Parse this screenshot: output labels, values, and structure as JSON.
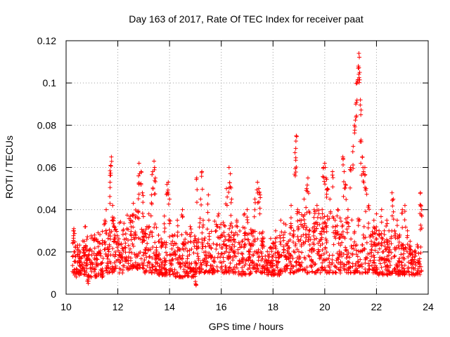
{
  "chart_data": {
    "type": "scatter",
    "title": "Day 163 of 2017, Rate Of TEC Index for receiver paat",
    "xlabel": "GPS time / hours",
    "ylabel": "ROTI / TECUs",
    "xlim": [
      10,
      24
    ],
    "ylim": [
      0,
      0.12
    ],
    "xticks": [
      10,
      12,
      14,
      16,
      18,
      20,
      22,
      24
    ],
    "xtick_labels": [
      "10",
      "12",
      "14",
      "16",
      "18",
      "20",
      "22",
      "24"
    ],
    "yticks": [
      0,
      0.02,
      0.04,
      0.06,
      0.08,
      0.1,
      0.12
    ],
    "ytick_labels": [
      "0",
      "0.02",
      "0.04",
      "0.06",
      "0.08",
      "0.1",
      "0.12"
    ],
    "grid": true,
    "marker": "plus",
    "color": "#ff0000",
    "x_data_range": [
      10.25,
      23.75
    ],
    "points": [
      [
        10.3,
        0.031
      ],
      [
        10.3,
        0.03
      ],
      [
        10.35,
        0.018
      ],
      [
        10.4,
        0.012
      ],
      [
        10.45,
        0.022
      ],
      [
        10.5,
        0.016
      ],
      [
        10.55,
        0.02
      ],
      [
        10.6,
        0.014
      ],
      [
        10.7,
        0.025
      ],
      [
        10.75,
        0.032
      ],
      [
        10.8,
        0.018
      ],
      [
        10.85,
        0.007
      ],
      [
        10.9,
        0.021
      ],
      [
        11.0,
        0.015
      ],
      [
        11.1,
        0.028
      ],
      [
        11.2,
        0.019
      ],
      [
        11.3,
        0.024
      ],
      [
        11.4,
        0.012
      ],
      [
        11.5,
        0.035
      ],
      [
        11.55,
        0.04
      ],
      [
        11.6,
        0.022
      ],
      [
        11.65,
        0.028
      ],
      [
        11.7,
        0.053
      ],
      [
        11.72,
        0.061
      ],
      [
        11.75,
        0.065
      ],
      [
        11.8,
        0.042
      ],
      [
        11.85,
        0.036
      ],
      [
        11.9,
        0.02
      ],
      [
        12.0,
        0.025
      ],
      [
        12.1,
        0.018
      ],
      [
        12.2,
        0.03
      ],
      [
        12.3,
        0.022
      ],
      [
        12.4,
        0.016
      ],
      [
        12.5,
        0.035
      ],
      [
        12.6,
        0.043
      ],
      [
        12.7,
        0.037
      ],
      [
        12.8,
        0.056
      ],
      [
        12.82,
        0.062
      ],
      [
        12.9,
        0.058
      ],
      [
        12.95,
        0.048
      ],
      [
        13.0,
        0.03
      ],
      [
        13.1,
        0.022
      ],
      [
        13.2,
        0.038
      ],
      [
        13.3,
        0.047
      ],
      [
        13.35,
        0.058
      ],
      [
        13.4,
        0.063
      ],
      [
        13.45,
        0.055
      ],
      [
        13.5,
        0.02
      ],
      [
        13.6,
        0.025
      ],
      [
        13.7,
        0.015
      ],
      [
        13.8,
        0.037
      ],
      [
        13.9,
        0.052
      ],
      [
        13.95,
        0.053
      ],
      [
        14.0,
        0.045
      ],
      [
        14.1,
        0.019
      ],
      [
        14.2,
        0.028
      ],
      [
        14.3,
        0.035
      ],
      [
        14.4,
        0.021
      ],
      [
        14.5,
        0.04
      ],
      [
        14.6,
        0.026
      ],
      [
        14.7,
        0.018
      ],
      [
        14.8,
        0.032
      ],
      [
        14.9,
        0.012
      ],
      [
        15.0,
        0.006
      ],
      [
        15.05,
        0.055
      ],
      [
        15.1,
        0.025
      ],
      [
        15.2,
        0.045
      ],
      [
        15.25,
        0.058
      ],
      [
        15.3,
        0.035
      ],
      [
        15.4,
        0.02
      ],
      [
        15.5,
        0.047
      ],
      [
        15.6,
        0.022
      ],
      [
        15.7,
        0.016
      ],
      [
        15.8,
        0.03
      ],
      [
        15.9,
        0.038
      ],
      [
        16.0,
        0.019
      ],
      [
        16.1,
        0.025
      ],
      [
        16.2,
        0.05
      ],
      [
        16.3,
        0.06
      ],
      [
        16.35,
        0.057
      ],
      [
        16.4,
        0.045
      ],
      [
        16.5,
        0.028
      ],
      [
        16.6,
        0.035
      ],
      [
        16.7,
        0.016
      ],
      [
        16.8,
        0.025
      ],
      [
        16.9,
        0.038
      ],
      [
        17.0,
        0.04
      ],
      [
        17.1,
        0.02
      ],
      [
        17.2,
        0.03
      ],
      [
        17.3,
        0.045
      ],
      [
        17.4,
        0.053
      ],
      [
        17.45,
        0.05
      ],
      [
        17.5,
        0.047
      ],
      [
        17.6,
        0.025
      ],
      [
        17.7,
        0.018
      ],
      [
        17.8,
        0.012
      ],
      [
        17.9,
        0.022
      ],
      [
        18.0,
        0.016
      ],
      [
        18.1,
        0.03
      ],
      [
        18.2,
        0.02
      ],
      [
        18.3,
        0.035
      ],
      [
        18.4,
        0.028
      ],
      [
        18.5,
        0.018
      ],
      [
        18.6,
        0.025
      ],
      [
        18.7,
        0.042
      ],
      [
        18.8,
        0.03
      ],
      [
        18.85,
        0.067
      ],
      [
        18.88,
        0.069
      ],
      [
        18.9,
        0.075
      ],
      [
        18.95,
        0.04
      ],
      [
        19.0,
        0.025
      ],
      [
        19.1,
        0.035
      ],
      [
        19.2,
        0.045
      ],
      [
        19.3,
        0.05
      ],
      [
        19.35,
        0.055
      ],
      [
        19.4,
        0.03
      ],
      [
        19.5,
        0.02
      ],
      [
        19.6,
        0.032
      ],
      [
        19.7,
        0.042
      ],
      [
        19.8,
        0.025
      ],
      [
        19.9,
        0.04
      ],
      [
        19.95,
        0.06
      ],
      [
        20.0,
        0.062
      ],
      [
        20.05,
        0.055
      ],
      [
        20.1,
        0.05
      ],
      [
        20.2,
        0.045
      ],
      [
        20.3,
        0.058
      ],
      [
        20.4,
        0.035
      ],
      [
        20.5,
        0.04
      ],
      [
        20.6,
        0.028
      ],
      [
        20.7,
        0.065
      ],
      [
        20.75,
        0.058
      ],
      [
        20.8,
        0.052
      ],
      [
        20.9,
        0.04
      ],
      [
        21.0,
        0.06
      ],
      [
        21.1,
        0.07
      ],
      [
        21.15,
        0.08
      ],
      [
        21.2,
        0.09
      ],
      [
        21.25,
        0.1
      ],
      [
        21.3,
        0.108
      ],
      [
        21.32,
        0.114
      ],
      [
        21.35,
        0.105
      ],
      [
        21.38,
        0.092
      ],
      [
        21.4,
        0.073
      ],
      [
        21.45,
        0.065
      ],
      [
        21.5,
        0.058
      ],
      [
        21.55,
        0.06
      ],
      [
        21.6,
        0.05
      ],
      [
        21.7,
        0.042
      ],
      [
        21.8,
        0.025
      ],
      [
        21.9,
        0.035
      ],
      [
        22.0,
        0.038
      ],
      [
        22.1,
        0.03
      ],
      [
        22.2,
        0.04
      ],
      [
        22.3,
        0.03
      ],
      [
        22.4,
        0.035
      ],
      [
        22.5,
        0.025
      ],
      [
        22.6,
        0.048
      ],
      [
        22.65,
        0.045
      ],
      [
        22.7,
        0.03
      ],
      [
        22.8,
        0.035
      ],
      [
        22.9,
        0.028
      ],
      [
        23.0,
        0.04
      ],
      [
        23.1,
        0.042
      ],
      [
        23.2,
        0.03
      ],
      [
        23.3,
        0.025
      ],
      [
        23.4,
        0.02
      ],
      [
        23.5,
        0.018
      ],
      [
        23.6,
        0.016
      ],
      [
        23.7,
        0.048
      ],
      [
        23.72,
        0.042
      ],
      [
        23.75,
        0.04
      ]
    ],
    "bands": [
      [
        10.25,
        10.8,
        0.009,
        0.026
      ],
      [
        10.8,
        11.5,
        0.008,
        0.03
      ],
      [
        11.5,
        12.2,
        0.01,
        0.035
      ],
      [
        12.2,
        13.0,
        0.012,
        0.04
      ],
      [
        13.0,
        13.5,
        0.01,
        0.034
      ],
      [
        13.5,
        14.2,
        0.009,
        0.028
      ],
      [
        14.2,
        15.0,
        0.008,
        0.03
      ],
      [
        15.0,
        15.6,
        0.01,
        0.032
      ],
      [
        15.6,
        16.4,
        0.01,
        0.035
      ],
      [
        16.4,
        17.2,
        0.009,
        0.032
      ],
      [
        17.2,
        17.8,
        0.01,
        0.03
      ],
      [
        17.8,
        18.4,
        0.009,
        0.028
      ],
      [
        18.4,
        19.0,
        0.01,
        0.035
      ],
      [
        19.0,
        19.8,
        0.01,
        0.04
      ],
      [
        19.8,
        20.6,
        0.01,
        0.038
      ],
      [
        20.6,
        21.4,
        0.01,
        0.036
      ],
      [
        21.4,
        22.0,
        0.01,
        0.032
      ],
      [
        22.0,
        22.8,
        0.009,
        0.03
      ],
      [
        22.8,
        23.75,
        0.009,
        0.024
      ]
    ]
  }
}
